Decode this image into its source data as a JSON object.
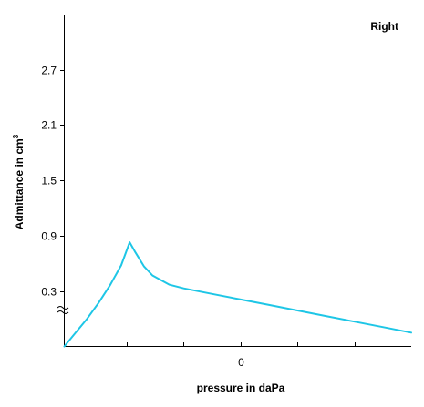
{
  "chart_data": {
    "type": "line",
    "title": "",
    "ear_label": "Right",
    "xlabel": "pressure in daPa",
    "ylabel": "Admittance in cm",
    "ylabel_superscript": "3",
    "x_tick_labels": [
      {
        "x": 0,
        "label": "0"
      }
    ],
    "x_ticks_unlabeled": [
      -200,
      -100,
      100,
      200
    ],
    "xlim": [
      -310,
      300
    ],
    "y_ticks": [
      {
        "y": 0.3,
        "label": "0.3"
      },
      {
        "y": 0.9,
        "label": "0.9"
      },
      {
        "y": 1.5,
        "label": "1.5"
      },
      {
        "y": 2.1,
        "label": "2.1"
      },
      {
        "y": 2.7,
        "label": "2.7"
      }
    ],
    "ylim": [
      -0.3,
      3.3
    ],
    "axis_break": true,
    "grid": false,
    "series": [
      {
        "color": "#1EC6E6",
        "points": [
          [
            -310,
            -0.3
          ],
          [
            -290,
            -0.15
          ],
          [
            -270,
            0.0
          ],
          [
            -250,
            0.17
          ],
          [
            -230,
            0.36
          ],
          [
            -210,
            0.58
          ],
          [
            -195,
            0.83
          ],
          [
            -185,
            0.72
          ],
          [
            -170,
            0.57
          ],
          [
            -155,
            0.47
          ],
          [
            -140,
            0.42
          ],
          [
            -125,
            0.37
          ],
          [
            -100,
            0.33
          ],
          [
            -50,
            0.27
          ],
          [
            0,
            0.21
          ],
          [
            50,
            0.15
          ],
          [
            100,
            0.09
          ],
          [
            150,
            0.03
          ],
          [
            200,
            -0.03
          ],
          [
            250,
            -0.09
          ],
          [
            300,
            -0.15
          ]
        ]
      }
    ]
  }
}
